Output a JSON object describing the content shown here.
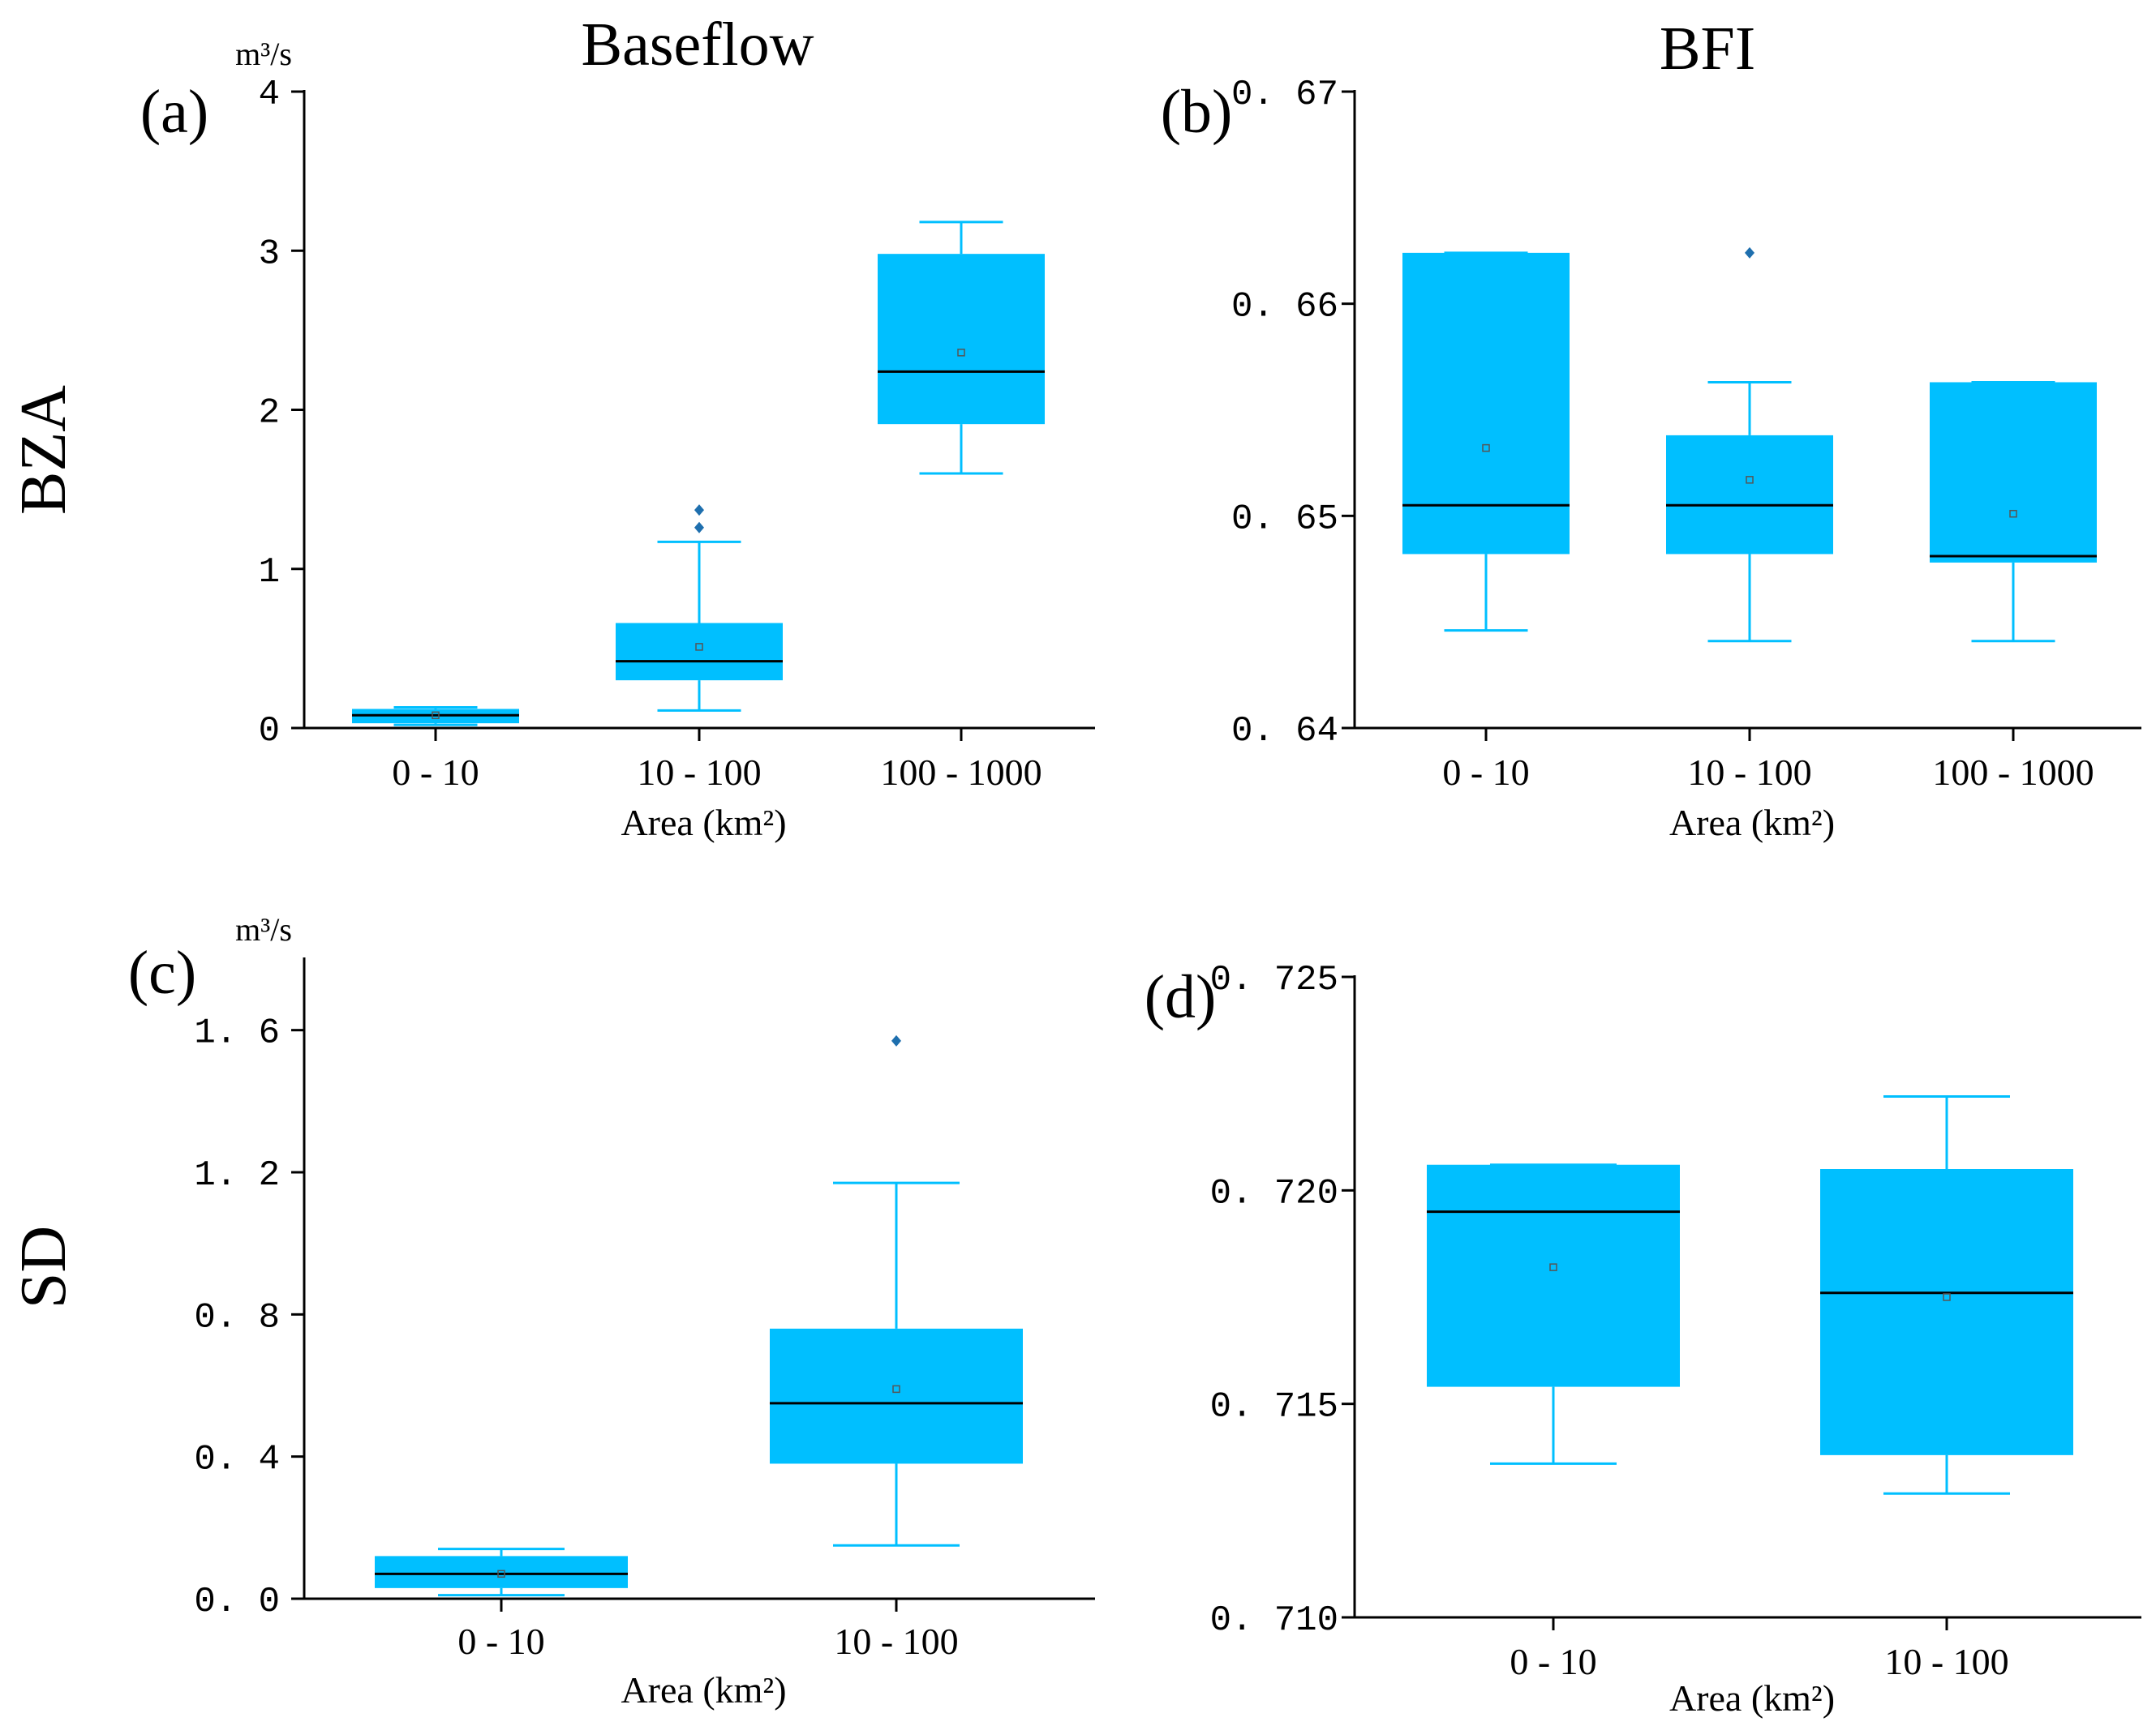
{
  "column_titles": [
    "Baseflow",
    "BFI"
  ],
  "row_titles": [
    "BZA",
    "SD"
  ],
  "colors": {
    "box_fill": "#00BFFF",
    "whisker": "#00BFFF",
    "median": "#000000",
    "mean_marker": "#555555",
    "outlier": "#1E6FAE",
    "axis": "#000000"
  },
  "chart_data": [
    {
      "panel": "(a)",
      "type": "boxplot",
      "unit": "m³/s",
      "xlabel": "Area (km²)",
      "ylim": [
        0,
        4
      ],
      "yticks": [
        0,
        1,
        2,
        3,
        4
      ],
      "ytick_labels": [
        "0",
        "1",
        "2",
        "3",
        "4"
      ],
      "categories": [
        "0 - 10",
        "10 - 100",
        "100 - 1000"
      ],
      "boxes": [
        {
          "whisker_low": 0.02,
          "q1": 0.03,
          "median": 0.08,
          "q3": 0.12,
          "whisker_high": 0.13,
          "mean": 0.08,
          "outliers": []
        },
        {
          "whisker_low": 0.11,
          "q1": 0.3,
          "median": 0.42,
          "q3": 0.66,
          "whisker_high": 1.17,
          "mean": 0.51,
          "outliers": [
            1.26,
            1.37
          ]
        },
        {
          "whisker_low": 1.6,
          "q1": 1.91,
          "median": 2.24,
          "q3": 2.98,
          "whisker_high": 3.18,
          "mean": 2.36,
          "outliers": []
        }
      ]
    },
    {
      "panel": "(b)",
      "type": "boxplot",
      "unit": "",
      "xlabel": "Area (km²)",
      "ylim": [
        0.64,
        0.67
      ],
      "yticks": [
        0.64,
        0.65,
        0.66,
        0.67
      ],
      "ytick_labels": [
        "0. 64",
        "0. 65",
        "0. 66",
        "0. 67"
      ],
      "categories": [
        "0 - 10",
        "10 - 100",
        "100 - 1000"
      ],
      "boxes": [
        {
          "whisker_low": 0.6446,
          "q1": 0.6482,
          "median": 0.6505,
          "q3": 0.6624,
          "whisker_high": 0.6624,
          "mean": 0.6532,
          "outliers": []
        },
        {
          "whisker_low": 0.6441,
          "q1": 0.6482,
          "median": 0.6505,
          "q3": 0.6538,
          "whisker_high": 0.6563,
          "mean": 0.6517,
          "outliers": [
            0.6624
          ]
        },
        {
          "whisker_low": 0.6441,
          "q1": 0.6478,
          "median": 0.6481,
          "q3": 0.6563,
          "whisker_high": 0.6563,
          "mean": 0.6501,
          "outliers": []
        }
      ]
    },
    {
      "panel": "(c)",
      "type": "boxplot",
      "unit": "m³/s",
      "xlabel": "Area (km²)",
      "ylim": [
        0.0,
        1.8
      ],
      "yticks": [
        0.0,
        0.4,
        0.8,
        1.2,
        1.6
      ],
      "ytick_labels": [
        "0. 0",
        "0. 4",
        "0. 8",
        "1. 2",
        "1. 6"
      ],
      "categories": [
        "0 - 10",
        "10 - 100"
      ],
      "boxes": [
        {
          "whisker_low": 0.01,
          "q1": 0.03,
          "median": 0.07,
          "q3": 0.12,
          "whisker_high": 0.14,
          "mean": 0.07,
          "outliers": []
        },
        {
          "whisker_low": 0.15,
          "q1": 0.38,
          "median": 0.55,
          "q3": 0.76,
          "whisker_high": 1.17,
          "mean": 0.59,
          "outliers": [
            1.57
          ]
        }
      ]
    },
    {
      "panel": "(d)",
      "type": "boxplot",
      "unit": "",
      "xlabel": "Area (km²)",
      "ylim": [
        0.71,
        0.725
      ],
      "yticks": [
        0.71,
        0.715,
        0.72,
        0.725
      ],
      "ytick_labels": [
        "0. 710",
        "0. 715",
        "0. 720",
        "0. 725"
      ],
      "categories": [
        "0 - 10",
        "10 - 100"
      ],
      "boxes": [
        {
          "whisker_low": 0.7136,
          "q1": 0.7154,
          "median": 0.7195,
          "q3": 0.7206,
          "whisker_high": 0.7206,
          "mean": 0.7182,
          "outliers": []
        },
        {
          "whisker_low": 0.7129,
          "q1": 0.7138,
          "median": 0.7176,
          "q3": 0.7205,
          "whisker_high": 0.7222,
          "mean": 0.7175,
          "outliers": []
        }
      ]
    }
  ]
}
